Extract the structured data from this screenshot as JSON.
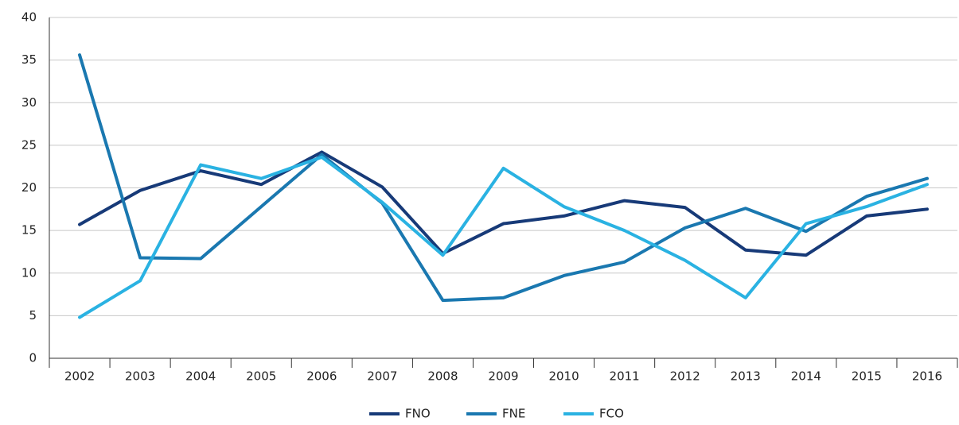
{
  "chart_data": {
    "type": "line",
    "categories": [
      "2002",
      "2003",
      "2004",
      "2005",
      "2006",
      "2007",
      "2008",
      "2009",
      "2010",
      "2011",
      "2012",
      "2013",
      "2014",
      "2015",
      "2016"
    ],
    "series": [
      {
        "name": "FNO",
        "color": "#173a78",
        "values": [
          15.7,
          19.7,
          22.0,
          20.4,
          24.2,
          20.1,
          12.3,
          15.8,
          16.7,
          18.5,
          17.7,
          12.7,
          12.1,
          16.7,
          17.5
        ]
      },
      {
        "name": "FNE",
        "color": "#1a78b0",
        "values": [
          35.6,
          11.8,
          11.7,
          17.8,
          23.9,
          18.2,
          6.8,
          7.1,
          9.7,
          11.3,
          15.3,
          17.6,
          14.9,
          19.0,
          21.1
        ]
      },
      {
        "name": "FCO",
        "color": "#2ab2e2",
        "values": [
          4.8,
          9.1,
          22.7,
          21.1,
          23.6,
          18.3,
          12.1,
          22.3,
          17.8,
          15.0,
          11.5,
          7.1,
          15.8,
          17.8,
          20.4
        ]
      }
    ],
    "ylim": [
      0,
      40
    ],
    "yticks": [
      0,
      5,
      10,
      15,
      20,
      25,
      30,
      35,
      40
    ],
    "grid": true,
    "legend": "bottom"
  }
}
